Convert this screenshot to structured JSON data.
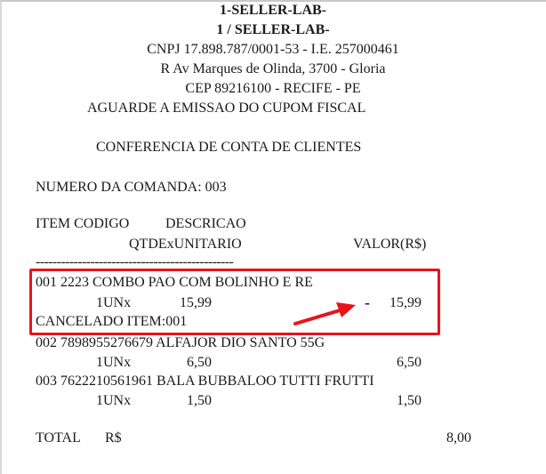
{
  "header": {
    "store_name": "1-SELLER-LAB-",
    "store_sub": "1 / SELLER-LAB-",
    "cnpj_line": "CNPJ 17.898.787/0001-53 - I.E. 257000461",
    "address": "R Av Marques de Olinda, 3700 - Gloria",
    "cep_line": "CEP 89216100 - RECIFE - PE",
    "notice": "AGUARDE A EMISSAO DO CUPOM FISCAL"
  },
  "title": "CONFERENCIA DE CONTA DE CLIENTES",
  "order_number": "NUMERO DA COMANDA: 003",
  "columns": {
    "item_codigo": "ITEM CODIGO",
    "descricao": "DESCRICAO",
    "qtde_unitario": "QTDExUNITARIO",
    "valor": "VALOR(R$)"
  },
  "separator": "-----------------------------------------------",
  "items": [
    {
      "line": "001 2223 COMBO PAO COM BOLINHO E RE",
      "qty": "1UNx",
      "unit": "15,99",
      "value": "15,99",
      "canceled": true,
      "cancel_note": "CANCELADO ITEM:001",
      "minus": "-"
    },
    {
      "line": "002 7898955276679 ALFAJOR DIO SANTO 55G",
      "qty": "1UNx",
      "unit": "6,50",
      "value": "6,50"
    },
    {
      "line": "003 7622210561961 BALA BUBBALOO TUTTI FRUTTI",
      "qty": "1UNx",
      "unit": "1,50",
      "value": "1,50"
    }
  ],
  "total": {
    "label": "TOTAL",
    "currency": "R$",
    "value": "8,00"
  },
  "annotation": {
    "highlight_color": "#e8141c"
  }
}
